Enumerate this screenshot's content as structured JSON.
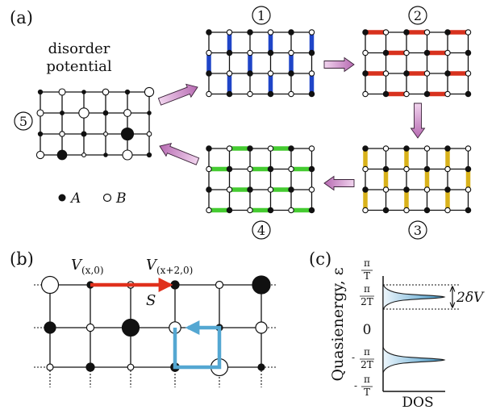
{
  "panel_labels": {
    "a": "(a)",
    "b": "(b)",
    "c": "(c)"
  },
  "panel_a": {
    "disorder_line1": "disorder",
    "disorder_line2": "potential",
    "step_labels": {
      "s1": "1",
      "s2": "2",
      "s3": "3",
      "s4": "4",
      "s5": "5"
    },
    "legend": {
      "a": "A",
      "b": "B"
    },
    "step_colors": {
      "s1": "#1f45c8",
      "s2": "#d8321e",
      "s3": "#d9b21a",
      "s4": "#45cc31"
    },
    "arrow_color": "#c987c4"
  },
  "panel_b": {
    "label_v1_main": "V",
    "label_v1_sub": "(x,0)",
    "label_v2_main": "V",
    "label_v2_sub": "(x+2,0)",
    "label_s": "S",
    "colors": {
      "hop": "#e0301c",
      "loop": "#54a7d2"
    }
  },
  "panel_c": {
    "ylabel": "Quasienergy, ε",
    "xlabel": "DOS",
    "ticks": {
      "pi": "π",
      "T": "T",
      "two_T": "2T",
      "zero": "0",
      "minus": "-"
    },
    "width_label": "2δV"
  }
}
